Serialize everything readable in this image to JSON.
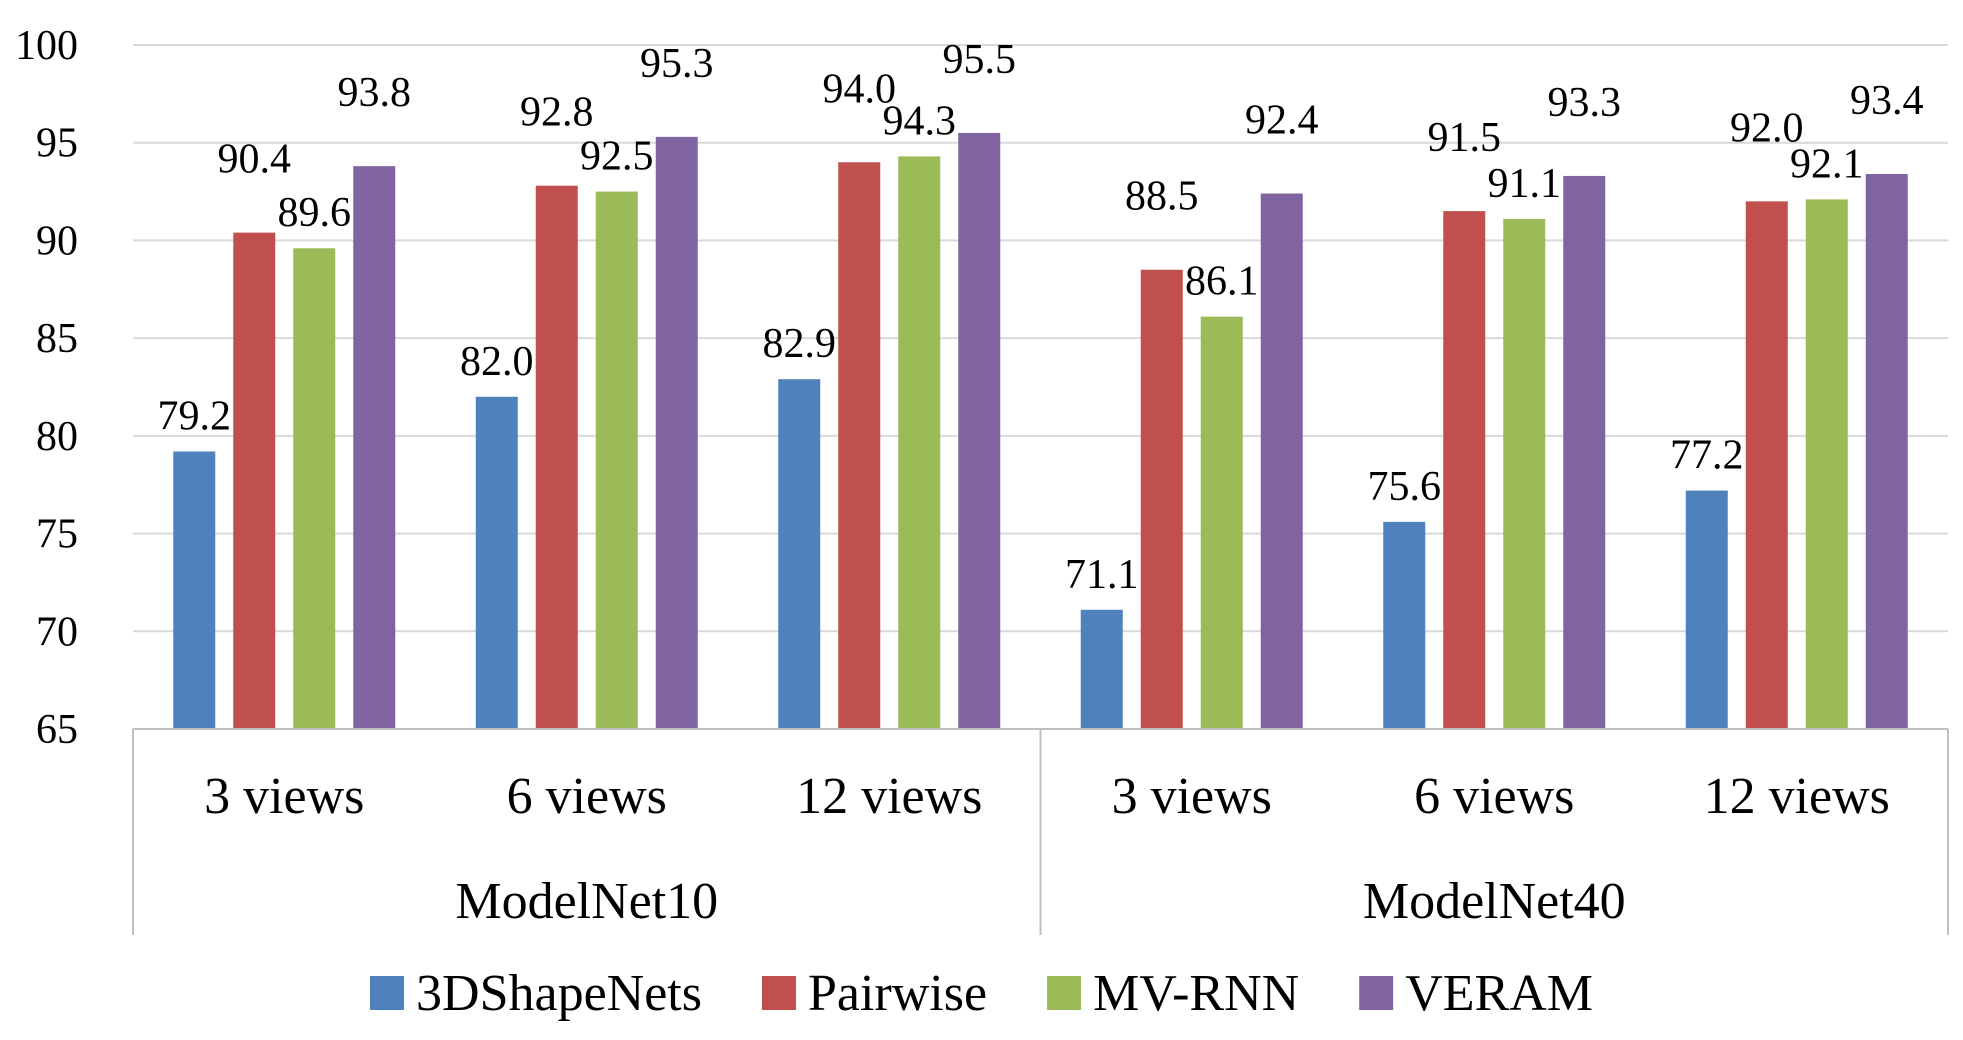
{
  "chart_data": {
    "type": "bar",
    "groups": [
      {
        "label": "ModelNet10",
        "categories": [
          "3 views",
          "6 views",
          "12 views"
        ]
      },
      {
        "label": "ModelNet40",
        "categories": [
          "3 views",
          "6 views",
          "12 views"
        ]
      }
    ],
    "series": [
      {
        "name": "3DShapeNets",
        "color": "#4f81bd",
        "values": [
          79.2,
          82.0,
          82.9,
          71.1,
          75.6,
          77.2
        ]
      },
      {
        "name": "Pairwise",
        "color": "#c0504d",
        "values": [
          90.4,
          92.8,
          94.0,
          88.5,
          91.5,
          92.0
        ]
      },
      {
        "name": "MV-RNN",
        "color": "#9bbb59",
        "values": [
          89.6,
          92.5,
          94.3,
          86.1,
          91.1,
          92.1
        ]
      },
      {
        "name": "VERAM",
        "color": "#8064a2",
        "values": [
          93.8,
          95.3,
          95.5,
          92.4,
          93.3,
          93.4
        ]
      }
    ],
    "y_ticks": [
      "65",
      "70",
      "75",
      "80",
      "85",
      "90",
      "95",
      "100"
    ],
    "ylim": [
      65,
      100
    ],
    "grid": true,
    "legend_position": "bottom"
  }
}
